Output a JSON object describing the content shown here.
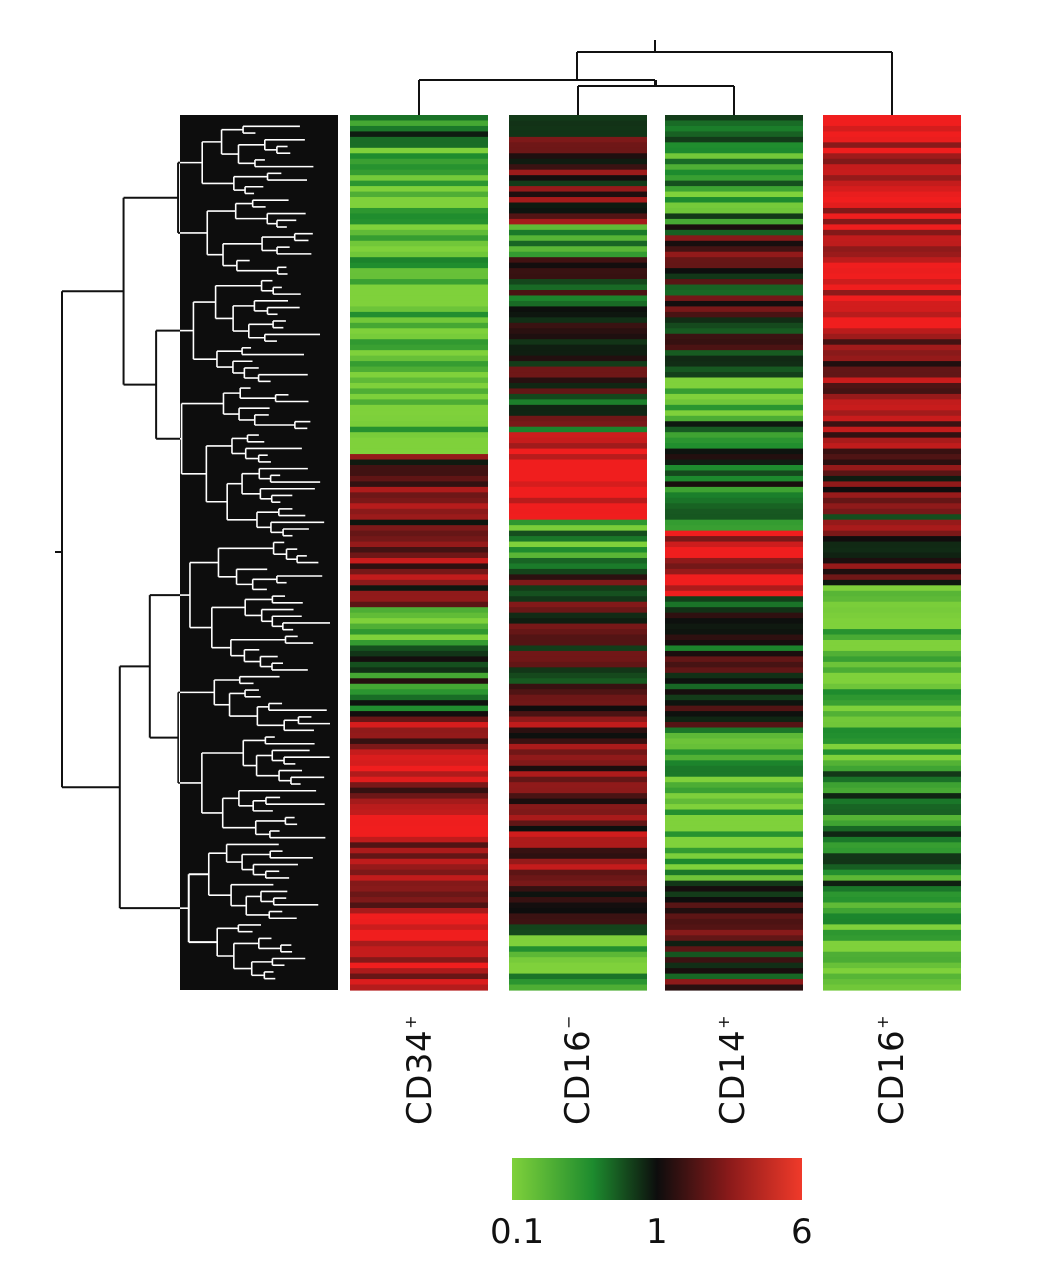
{
  "chart_data": {
    "type": "heatmap",
    "title": "",
    "columns": [
      {
        "name": "CD34",
        "sup": "+"
      },
      {
        "name": "CD16",
        "sup": "−"
      },
      {
        "name": "CD14",
        "sup": "+"
      },
      {
        "name": "CD16",
        "sup": "+"
      }
    ],
    "row_count": 160,
    "column_dendrogram": [
      [
        "CD34+",
        "CD16−",
        "CD14+"
      ],
      [
        "CD16+"
      ]
    ],
    "row_dendrogram": "hierarchical clustering of genes (left)",
    "colorbar": {
      "min": 0.1,
      "mid": 1,
      "max": 6,
      "tick_labels": [
        "0.1",
        "1",
        "6"
      ],
      "colors": [
        "#7fd13b",
        "#1d8b2e",
        "#0d0d0d",
        "#8b1a1a",
        "#f03a2a"
      ]
    },
    "blocks": [
      [
        {
          "from": 0,
          "to": 6,
          "v": -0.5
        },
        {
          "from": 6,
          "to": 30,
          "v": -0.8
        },
        {
          "from": 30,
          "to": 62,
          "v": -0.9
        },
        {
          "from": 62,
          "to": 90,
          "v": 0.4
        },
        {
          "from": 90,
          "to": 96,
          "v": -1.0
        },
        {
          "from": 96,
          "to": 110,
          "v": -0.3
        },
        {
          "from": 110,
          "to": 128,
          "v": 0.6
        },
        {
          "from": 128,
          "to": 132,
          "v": 1.0
        },
        {
          "from": 132,
          "to": 146,
          "v": 0.6
        },
        {
          "from": 146,
          "to": 160,
          "v": 0.8
        }
      ],
      [
        {
          "from": 0,
          "to": 20,
          "v": 0.2
        },
        {
          "from": 20,
          "to": 26,
          "v": -0.6
        },
        {
          "from": 26,
          "to": 58,
          "v": 0.0
        },
        {
          "from": 58,
          "to": 74,
          "v": 0.9
        },
        {
          "from": 74,
          "to": 84,
          "v": -0.6
        },
        {
          "from": 84,
          "to": 104,
          "v": 0.1
        },
        {
          "from": 104,
          "to": 140,
          "v": 0.4
        },
        {
          "from": 140,
          "to": 150,
          "v": 0.0
        },
        {
          "from": 150,
          "to": 160,
          "v": -0.8
        }
      ],
      [
        {
          "from": 0,
          "to": 20,
          "v": -0.6
        },
        {
          "from": 20,
          "to": 48,
          "v": 0.1
        },
        {
          "from": 48,
          "to": 56,
          "v": -0.9
        },
        {
          "from": 56,
          "to": 76,
          "v": -0.2
        },
        {
          "from": 76,
          "to": 88,
          "v": 0.8
        },
        {
          "from": 88,
          "to": 112,
          "v": 0.0
        },
        {
          "from": 112,
          "to": 140,
          "v": -0.8
        },
        {
          "from": 140,
          "to": 160,
          "v": 0.1
        }
      ],
      [
        {
          "from": 0,
          "to": 40,
          "v": 0.9
        },
        {
          "from": 40,
          "to": 62,
          "v": 0.5
        },
        {
          "from": 62,
          "to": 86,
          "v": 0.2
        },
        {
          "from": 86,
          "to": 120,
          "v": -0.9
        },
        {
          "from": 120,
          "to": 145,
          "v": -0.5
        },
        {
          "from": 145,
          "to": 160,
          "v": -0.8
        }
      ]
    ]
  }
}
